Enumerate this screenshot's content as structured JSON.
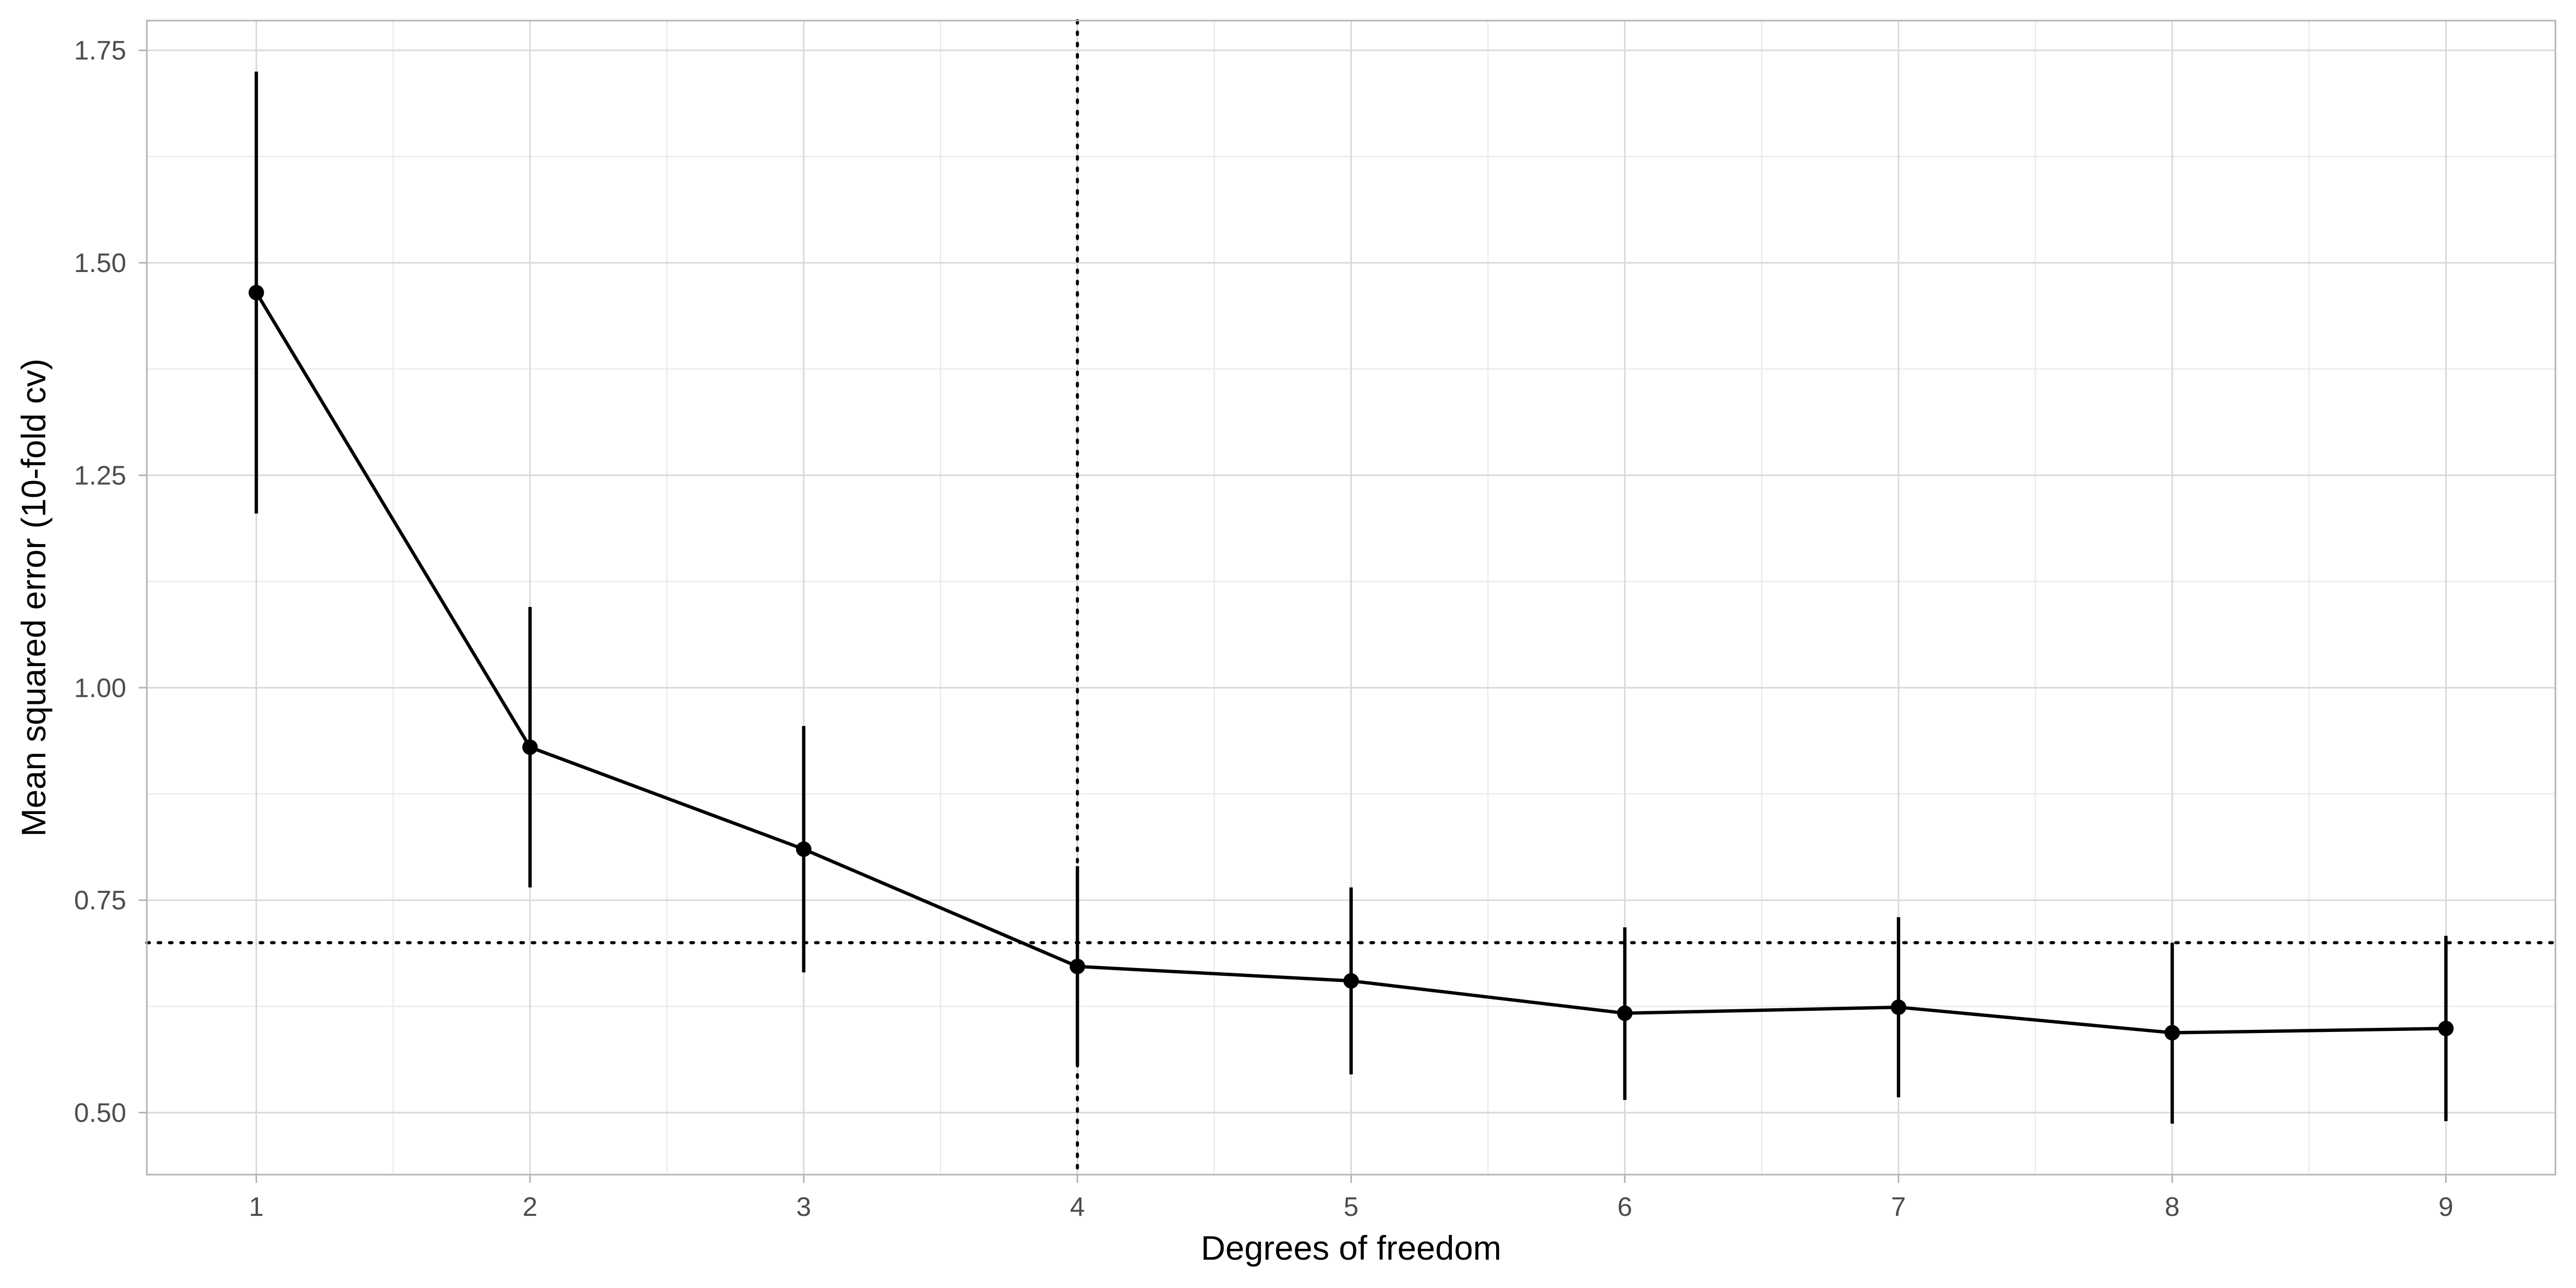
{
  "chart_data": {
    "type": "line",
    "title": "",
    "xlabel": "Degrees of freedom",
    "ylabel": "Mean squared error (10-fold cv)",
    "x": [
      1,
      2,
      3,
      4,
      5,
      6,
      7,
      8,
      9
    ],
    "series": [
      {
        "values": [
          1.465,
          0.93,
          0.81,
          0.672,
          0.655,
          0.617,
          0.624,
          0.594,
          0.599
        ],
        "lower": [
          1.205,
          0.765,
          0.665,
          0.555,
          0.545,
          0.515,
          0.518,
          0.487,
          0.49
        ],
        "upper": [
          1.725,
          1.095,
          0.955,
          0.79,
          0.765,
          0.718,
          0.73,
          0.7,
          0.708
        ]
      }
    ],
    "xlim": [
      0.6,
      9.4
    ],
    "ylim": [
      0.427,
      1.785
    ],
    "x_ticks": [
      "1",
      "2",
      "3",
      "4",
      "5",
      "6",
      "7",
      "8",
      "9"
    ],
    "y_ticks": [
      "0.50",
      "0.75",
      "1.00",
      "1.25",
      "1.50",
      "1.75"
    ],
    "vline_x": 4,
    "hline_y": 0.7,
    "grid": true,
    "legend": "none",
    "colors": {
      "line": "#000000",
      "grid_major": "#d9d9d9",
      "grid_minor": "#ebebeb",
      "border": "#b3b3b3",
      "tick_text": "#4d4d4d",
      "title_text": "#000000"
    }
  }
}
